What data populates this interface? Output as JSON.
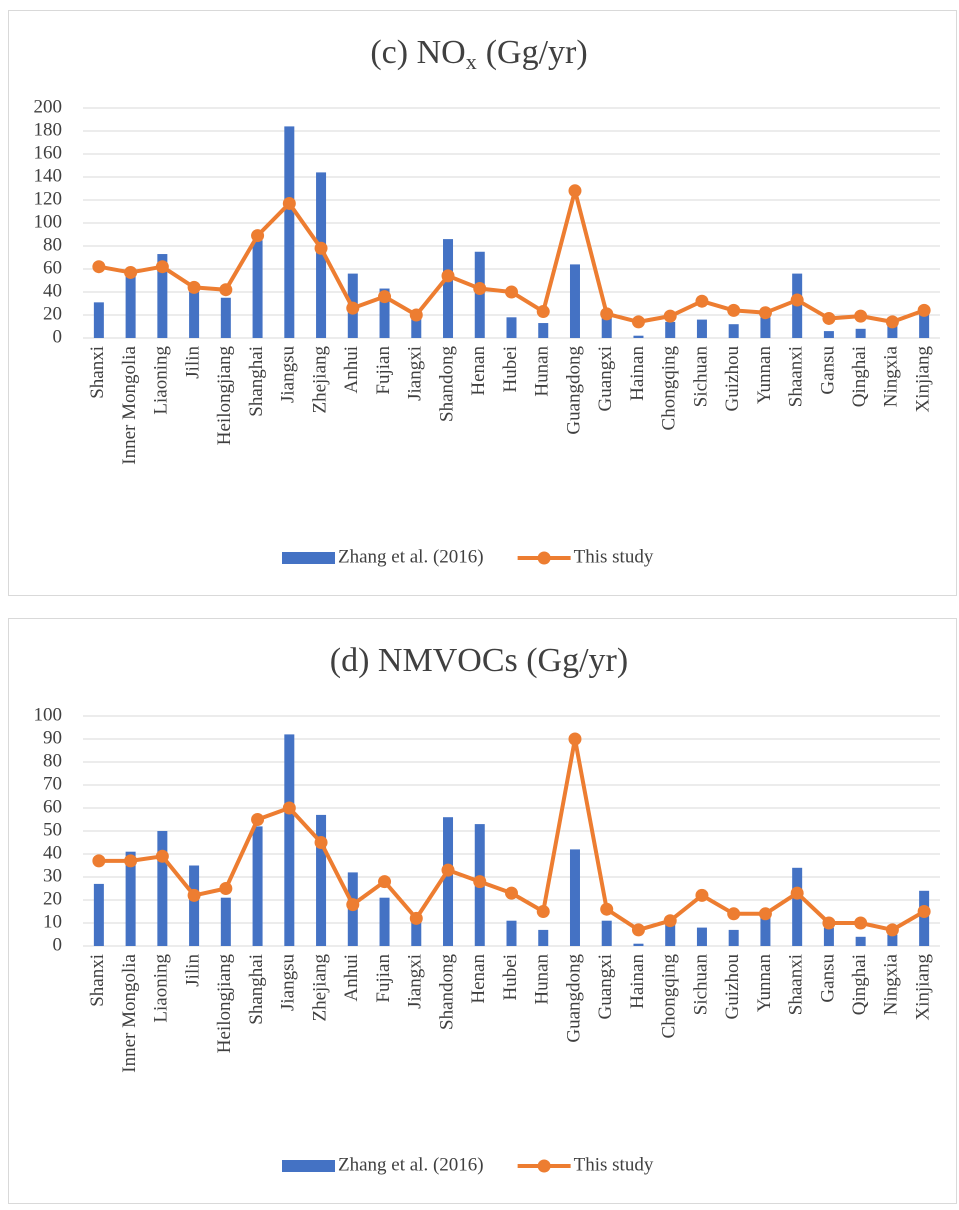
{
  "chart_data": [
    {
      "type": "bar-line",
      "title": "(c) NO",
      "title_subscript": "x",
      "title_suffix": "(Gg/yr)",
      "categories": [
        "Shanxi",
        "Inner Mongolia",
        "Liaoning",
        "Jilin",
        "Heilongjiang",
        "Shanghai",
        "Jiangsu",
        "Zhejiang",
        "Anhui",
        "Fujian",
        "Jiangxi",
        "Shandong",
        "Henan",
        "Hubei",
        "Hunan",
        "Guangdong",
        "Guangxi",
        "Hainan",
        "Chongqing",
        "Sichuan",
        "Guizhou",
        "Yunnan",
        "Shaanxi",
        "Gansu",
        "Qinghai",
        "Ningxia",
        "Xinjiang"
      ],
      "series": [
        {
          "name": "Zhang et al. (2016)",
          "kind": "bar",
          "color": "#4472c4",
          "values": [
            31,
            55,
            73,
            40,
            35,
            85,
            184,
            144,
            56,
            43,
            17,
            86,
            75,
            18,
            13,
            64,
            20,
            2,
            14,
            16,
            12,
            18,
            56,
            6,
            8,
            13,
            22
          ]
        },
        {
          "name": "This study",
          "kind": "line",
          "color": "#ed7d31",
          "values": [
            62,
            57,
            62,
            44,
            42,
            89,
            117,
            78,
            26,
            36,
            20,
            54,
            43,
            40,
            23,
            128,
            21,
            14,
            19,
            32,
            24,
            22,
            33,
            17,
            19,
            14,
            24
          ]
        }
      ],
      "ylim": [
        0,
        200
      ],
      "yticks": [
        0,
        20,
        40,
        60,
        80,
        100,
        120,
        140,
        160,
        180,
        200
      ],
      "grid": true,
      "legend": "bottom"
    },
    {
      "type": "bar-line",
      "title": "(d) NMVOCs (Gg/yr)",
      "categories": [
        "Shanxi",
        "Inner Mongolia",
        "Liaoning",
        "Jilin",
        "Heilongjiang",
        "Shanghai",
        "Jiangsu",
        "Zhejiang",
        "Anhui",
        "Fujian",
        "Jiangxi",
        "Shandong",
        "Henan",
        "Hubei",
        "Hunan",
        "Guangdong",
        "Guangxi",
        "Hainan",
        "Chongqing",
        "Sichuan",
        "Guizhou",
        "Yunnan",
        "Shaanxi",
        "Gansu",
        "Qinghai",
        "Ningxia",
        "Xinjiang"
      ],
      "series": [
        {
          "name": "Zhang et al. (2016)",
          "kind": "bar",
          "color": "#4472c4",
          "values": [
            27,
            41,
            50,
            35,
            21,
            52,
            92,
            57,
            32,
            21,
            11,
            56,
            53,
            11,
            7,
            42,
            11,
            1,
            10,
            8,
            7,
            13,
            34,
            8,
            4,
            5,
            24
          ]
        },
        {
          "name": "This study",
          "kind": "line",
          "color": "#ed7d31",
          "values": [
            37,
            37,
            39,
            22,
            25,
            55,
            60,
            45,
            18,
            28,
            12,
            33,
            28,
            23,
            15,
            90,
            16,
            7,
            11,
            22,
            14,
            14,
            23,
            10,
            10,
            7,
            15
          ]
        }
      ],
      "ylim": [
        0,
        100
      ],
      "yticks": [
        0,
        10,
        20,
        30,
        40,
        50,
        60,
        70,
        80,
        90,
        100
      ],
      "grid": true,
      "legend": "bottom"
    }
  ]
}
